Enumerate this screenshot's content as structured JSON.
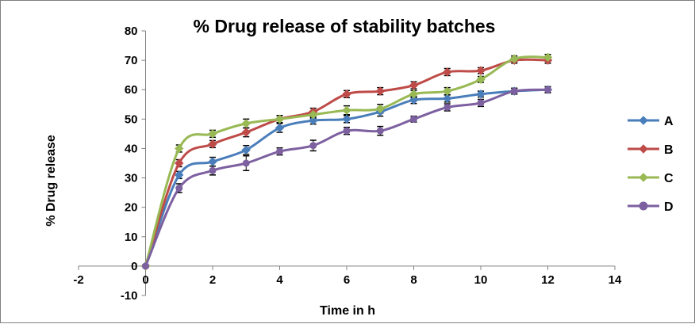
{
  "chart_data": {
    "type": "line",
    "title": "% Drug release of stability batches",
    "xlabel": "Time in h",
    "ylabel": "% Drug release",
    "xlim": [
      -2,
      14
    ],
    "ylim": [
      -10,
      80
    ],
    "x_ticks": [
      -2,
      0,
      2,
      4,
      6,
      8,
      10,
      12,
      14
    ],
    "y_ticks": [
      -10,
      0,
      10,
      20,
      30,
      40,
      50,
      60,
      70,
      80
    ],
    "x_tick_labels": [
      "-2",
      "0",
      "2",
      "4",
      "6",
      "8",
      "10",
      "12",
      "14"
    ],
    "y_tick_labels": [
      "-10",
      "0",
      "10",
      "20",
      "30",
      "40",
      "50",
      "60",
      "70",
      "80"
    ],
    "x": [
      0,
      1,
      2,
      3,
      4,
      5,
      6,
      7,
      8,
      9,
      10,
      11,
      12
    ],
    "smoothed": true,
    "error_bars": true,
    "grid": false,
    "legend_position": "right",
    "series": [
      {
        "name": "A",
        "color": "#4a7ebb",
        "marker": "diamond",
        "values": [
          0,
          31,
          35.5,
          39.5,
          47,
          49.5,
          50,
          52.5,
          56.5,
          57,
          58.5,
          59.5,
          60
        ],
        "errors": [
          0.5,
          1.2,
          1.5,
          1.5,
          1.5,
          1.2,
          1.2,
          1.5,
          1.2,
          1.2,
          1,
          1,
          1
        ]
      },
      {
        "name": "B",
        "color": "#be4b48",
        "marker": "diamond",
        "values": [
          0,
          35,
          41.5,
          45.5,
          50,
          52.5,
          58.5,
          59.5,
          61.5,
          66,
          66.5,
          70,
          70
        ],
        "errors": [
          0.5,
          1.2,
          1.2,
          1.5,
          1.2,
          1.2,
          1.2,
          1.2,
          1.2,
          1.2,
          1,
          1,
          1
        ]
      },
      {
        "name": "C",
        "color": "#98b954",
        "marker": "diamond",
        "values": [
          0,
          40,
          45,
          48.5,
          50,
          51.5,
          53,
          53.5,
          58.5,
          59.5,
          63.5,
          70.5,
          71
        ],
        "errors": [
          0.5,
          1.2,
          1.2,
          1.5,
          1.2,
          1.2,
          1.5,
          1.5,
          1.2,
          1.2,
          1,
          1,
          1
        ]
      },
      {
        "name": "D",
        "color": "#7d60a0",
        "marker": "circle",
        "values": [
          0,
          26.5,
          32.5,
          35,
          39,
          41,
          46,
          46,
          50,
          54,
          55.5,
          59.5,
          60
        ],
        "errors": [
          0.5,
          1.5,
          1.5,
          2.5,
          1.2,
          1.8,
          1.2,
          1.5,
          1,
          1.2,
          1.2,
          1,
          1
        ]
      }
    ]
  }
}
